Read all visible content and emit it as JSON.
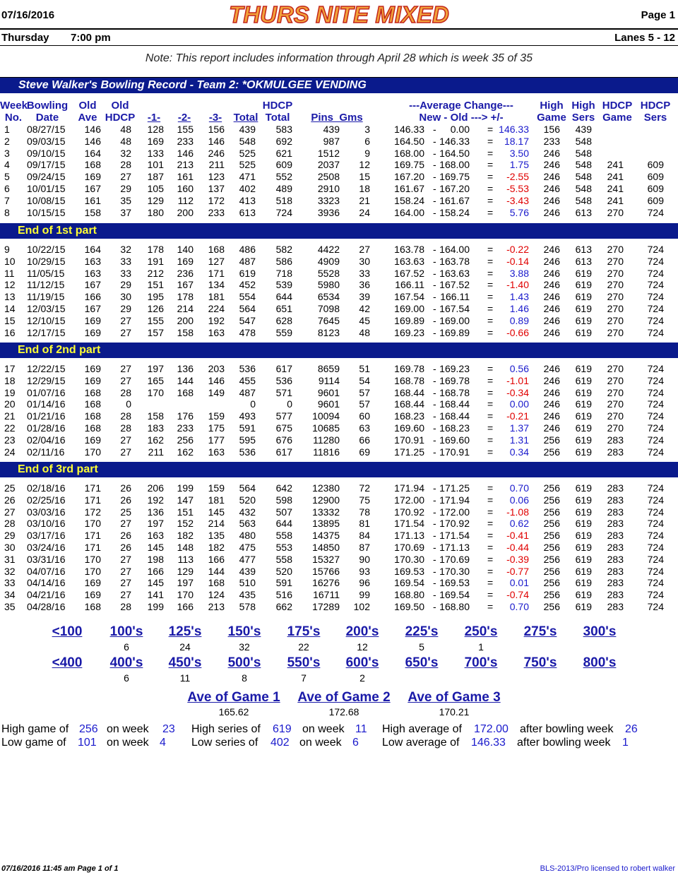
{
  "header": {
    "date": "07/16/2016",
    "title": "THURS NITE MIXED",
    "page": "Page 1",
    "day": "Thursday",
    "time": "7:00 pm",
    "lanes": "Lanes 5 - 12",
    "note": "Note: This report includes information through April 28   which is week 35 of 35"
  },
  "record_title": "Steve Walker's Bowling Record  - Team 2: *OKMULGEE VENDING",
  "columns": {
    "week": [
      "Week",
      "No."
    ],
    "date": [
      "Bowling",
      "Date"
    ],
    "old_ave": [
      "Old",
      "Ave"
    ],
    "old_hdcp": [
      "Old",
      "HDCP"
    ],
    "g1": "-1-",
    "g2": "-2-",
    "g3": "-3-",
    "total": "Total",
    "hdcp_total": [
      "HDCP",
      "Total"
    ],
    "pins_gms": "Pins  Gms",
    "avg_change": [
      "---Average Change---",
      "New - Old ---> +/-"
    ],
    "high_game": [
      "High",
      "Game"
    ],
    "high_sers": [
      "High",
      "Sers"
    ],
    "hdcp_game": [
      "HDCP",
      "Game"
    ],
    "hdcp_sers": [
      "HDCP",
      "Sers"
    ]
  },
  "parts": [
    {
      "label": "",
      "rows": [
        [
          "1",
          "08/27/15",
          "146",
          "48",
          "128",
          "155",
          "156",
          "439",
          "583",
          "439",
          "3",
          "146.33",
          "0.00",
          "146.33",
          "156",
          "439",
          "",
          ""
        ],
        [
          "2",
          "09/03/15",
          "146",
          "48",
          "169",
          "233",
          "146",
          "548",
          "692",
          "987",
          "6",
          "164.50",
          "146.33",
          "18.17",
          "233",
          "548",
          "",
          ""
        ],
        [
          "3",
          "09/10/15",
          "164",
          "32",
          "133",
          "146",
          "246",
          "525",
          "621",
          "1512",
          "9",
          "168.00",
          "164.50",
          "3.50",
          "246",
          "548",
          "",
          ""
        ],
        [
          "4",
          "09/17/15",
          "168",
          "28",
          "101",
          "213",
          "211",
          "525",
          "609",
          "2037",
          "12",
          "169.75",
          "168.00",
          "1.75",
          "246",
          "548",
          "241",
          "609"
        ],
        [
          "5",
          "09/24/15",
          "169",
          "27",
          "187",
          "161",
          "123",
          "471",
          "552",
          "2508",
          "15",
          "167.20",
          "169.75",
          "-2.55",
          "246",
          "548",
          "241",
          "609"
        ],
        [
          "6",
          "10/01/15",
          "167",
          "29",
          "105",
          "160",
          "137",
          "402",
          "489",
          "2910",
          "18",
          "161.67",
          "167.20",
          "-5.53",
          "246",
          "548",
          "241",
          "609"
        ],
        [
          "7",
          "10/08/15",
          "161",
          "35",
          "129",
          "112",
          "172",
          "413",
          "518",
          "3323",
          "21",
          "158.24",
          "161.67",
          "-3.43",
          "246",
          "548",
          "241",
          "609"
        ],
        [
          "8",
          "10/15/15",
          "158",
          "37",
          "180",
          "200",
          "233",
          "613",
          "724",
          "3936",
          "24",
          "164.00",
          "158.24",
          "5.76",
          "246",
          "613",
          "270",
          "724"
        ]
      ]
    },
    {
      "label": "End of 1st part",
      "rows": [
        [
          "9",
          "10/22/15",
          "164",
          "32",
          "178",
          "140",
          "168",
          "486",
          "582",
          "4422",
          "27",
          "163.78",
          "164.00",
          "-0.22",
          "246",
          "613",
          "270",
          "724"
        ],
        [
          "10",
          "10/29/15",
          "163",
          "33",
          "191",
          "169",
          "127",
          "487",
          "586",
          "4909",
          "30",
          "163.63",
          "163.78",
          "-0.14",
          "246",
          "613",
          "270",
          "724"
        ],
        [
          "11",
          "11/05/15",
          "163",
          "33",
          "212",
          "236",
          "171",
          "619",
          "718",
          "5528",
          "33",
          "167.52",
          "163.63",
          "3.88",
          "246",
          "619",
          "270",
          "724"
        ],
        [
          "12",
          "11/12/15",
          "167",
          "29",
          "151",
          "167",
          "134",
          "452",
          "539",
          "5980",
          "36",
          "166.11",
          "167.52",
          "-1.40",
          "246",
          "619",
          "270",
          "724"
        ],
        [
          "13",
          "11/19/15",
          "166",
          "30",
          "195",
          "178",
          "181",
          "554",
          "644",
          "6534",
          "39",
          "167.54",
          "166.11",
          "1.43",
          "246",
          "619",
          "270",
          "724"
        ],
        [
          "14",
          "12/03/15",
          "167",
          "29",
          "126",
          "214",
          "224",
          "564",
          "651",
          "7098",
          "42",
          "169.00",
          "167.54",
          "1.46",
          "246",
          "619",
          "270",
          "724"
        ],
        [
          "15",
          "12/10/15",
          "169",
          "27",
          "155",
          "200",
          "192",
          "547",
          "628",
          "7645",
          "45",
          "169.89",
          "169.00",
          "0.89",
          "246",
          "619",
          "270",
          "724"
        ],
        [
          "16",
          "12/17/15",
          "169",
          "27",
          "157",
          "158",
          "163",
          "478",
          "559",
          "8123",
          "48",
          "169.23",
          "169.89",
          "-0.66",
          "246",
          "619",
          "270",
          "724"
        ]
      ]
    },
    {
      "label": "End of 2nd part",
      "rows": [
        [
          "17",
          "12/22/15",
          "169",
          "27",
          "197",
          "136",
          "203",
          "536",
          "617",
          "8659",
          "51",
          "169.78",
          "169.23",
          "0.56",
          "246",
          "619",
          "270",
          "724"
        ],
        [
          "18",
          "12/29/15",
          "169",
          "27",
          "165",
          "144",
          "146",
          "455",
          "536",
          "9114",
          "54",
          "168.78",
          "169.78",
          "-1.01",
          "246",
          "619",
          "270",
          "724"
        ],
        [
          "19",
          "01/07/16",
          "168",
          "28",
          "170",
          "168",
          "149",
          "487",
          "571",
          "9601",
          "57",
          "168.44",
          "168.78",
          "-0.34",
          "246",
          "619",
          "270",
          "724"
        ],
        [
          "20",
          "01/14/16",
          "168",
          "0",
          "",
          "",
          "",
          "0",
          "0",
          "9601",
          "57",
          "168.44",
          "168.44",
          "0.00",
          "246",
          "619",
          "270",
          "724"
        ],
        [
          "21",
          "01/21/16",
          "168",
          "28",
          "158",
          "176",
          "159",
          "493",
          "577",
          "10094",
          "60",
          "168.23",
          "168.44",
          "-0.21",
          "246",
          "619",
          "270",
          "724"
        ],
        [
          "22",
          "01/28/16",
          "168",
          "28",
          "183",
          "233",
          "175",
          "591",
          "675",
          "10685",
          "63",
          "169.60",
          "168.23",
          "1.37",
          "246",
          "619",
          "270",
          "724"
        ],
        [
          "23",
          "02/04/16",
          "169",
          "27",
          "162",
          "256",
          "177",
          "595",
          "676",
          "11280",
          "66",
          "170.91",
          "169.60",
          "1.31",
          "256",
          "619",
          "283",
          "724"
        ],
        [
          "24",
          "02/11/16",
          "170",
          "27",
          "211",
          "162",
          "163",
          "536",
          "617",
          "11816",
          "69",
          "171.25",
          "170.91",
          "0.34",
          "256",
          "619",
          "283",
          "724"
        ]
      ]
    },
    {
      "label": "End of 3rd part",
      "rows": [
        [
          "25",
          "02/18/16",
          "171",
          "26",
          "206",
          "199",
          "159",
          "564",
          "642",
          "12380",
          "72",
          "171.94",
          "171.25",
          "0.70",
          "256",
          "619",
          "283",
          "724"
        ],
        [
          "26",
          "02/25/16",
          "171",
          "26",
          "192",
          "147",
          "181",
          "520",
          "598",
          "12900",
          "75",
          "172.00",
          "171.94",
          "0.06",
          "256",
          "619",
          "283",
          "724"
        ],
        [
          "27",
          "03/03/16",
          "172",
          "25",
          "136",
          "151",
          "145",
          "432",
          "507",
          "13332",
          "78",
          "170.92",
          "172.00",
          "-1.08",
          "256",
          "619",
          "283",
          "724"
        ],
        [
          "28",
          "03/10/16",
          "170",
          "27",
          "197",
          "152",
          "214",
          "563",
          "644",
          "13895",
          "81",
          "171.54",
          "170.92",
          "0.62",
          "256",
          "619",
          "283",
          "724"
        ],
        [
          "29",
          "03/17/16",
          "171",
          "26",
          "163",
          "182",
          "135",
          "480",
          "558",
          "14375",
          "84",
          "171.13",
          "171.54",
          "-0.41",
          "256",
          "619",
          "283",
          "724"
        ],
        [
          "30",
          "03/24/16",
          "171",
          "26",
          "145",
          "148",
          "182",
          "475",
          "553",
          "14850",
          "87",
          "170.69",
          "171.13",
          "-0.44",
          "256",
          "619",
          "283",
          "724"
        ],
        [
          "31",
          "03/31/16",
          "170",
          "27",
          "198",
          "113",
          "166",
          "477",
          "558",
          "15327",
          "90",
          "170.30",
          "170.69",
          "-0.39",
          "256",
          "619",
          "283",
          "724"
        ],
        [
          "32",
          "04/07/16",
          "170",
          "27",
          "166",
          "129",
          "144",
          "439",
          "520",
          "15766",
          "93",
          "169.53",
          "170.30",
          "-0.77",
          "256",
          "619",
          "283",
          "724"
        ],
        [
          "33",
          "04/14/16",
          "169",
          "27",
          "145",
          "197",
          "168",
          "510",
          "591",
          "16276",
          "96",
          "169.54",
          "169.53",
          "0.01",
          "256",
          "619",
          "283",
          "724"
        ],
        [
          "34",
          "04/21/16",
          "169",
          "27",
          "141",
          "170",
          "124",
          "435",
          "516",
          "16711",
          "99",
          "168.80",
          "169.54",
          "-0.74",
          "256",
          "619",
          "283",
          "724"
        ],
        [
          "35",
          "04/28/16",
          "168",
          "28",
          "199",
          "166",
          "213",
          "578",
          "662",
          "17289",
          "102",
          "169.50",
          "168.80",
          "0.70",
          "256",
          "619",
          "283",
          "724"
        ]
      ]
    }
  ],
  "game_histogram": [
    {
      "label": "<100",
      "count": ""
    },
    {
      "label": "100's",
      "count": "6"
    },
    {
      "label": "125's",
      "count": "24"
    },
    {
      "label": "150's",
      "count": "32"
    },
    {
      "label": "175's",
      "count": "22"
    },
    {
      "label": "200's",
      "count": "12"
    },
    {
      "label": "225's",
      "count": "5"
    },
    {
      "label": "250's",
      "count": "1"
    },
    {
      "label": "275's",
      "count": ""
    },
    {
      "label": "300's",
      "count": ""
    }
  ],
  "series_histogram": [
    {
      "label": "<400",
      "count": ""
    },
    {
      "label": "400's",
      "count": "6"
    },
    {
      "label": "450's",
      "count": "11"
    },
    {
      "label": "500's",
      "count": "8"
    },
    {
      "label": "550's",
      "count": "7"
    },
    {
      "label": "600's",
      "count": "2"
    },
    {
      "label": "650's",
      "count": ""
    },
    {
      "label": "700's",
      "count": ""
    },
    {
      "label": "750's",
      "count": ""
    },
    {
      "label": "800's",
      "count": ""
    }
  ],
  "game_averages": [
    {
      "label": "Ave of Game 1",
      "value": "165.62"
    },
    {
      "label": "Ave of Game 2",
      "value": "172.68"
    },
    {
      "label": "Ave of Game 3",
      "value": "170.21"
    }
  ],
  "summary": {
    "high_game": {
      "label": "High game of",
      "value": "256",
      "week_label": "on week",
      "week": "23"
    },
    "low_game": {
      "label": "Low game of",
      "value": "101",
      "week_label": "on week",
      "week": "4"
    },
    "high_series": {
      "label": "High series of",
      "value": "619",
      "week_label": "on week",
      "week": "11"
    },
    "low_series": {
      "label": "Low series of",
      "value": "402",
      "week_label": "on week",
      "week": "6"
    },
    "high_average": {
      "label": "High average of",
      "value": "172.00",
      "week_label": "after bowling week",
      "week": "26"
    },
    "low_average": {
      "label": "Low average of",
      "value": "146.33",
      "week_label": "after bowling week",
      "week": "1"
    }
  },
  "footer": {
    "left": "07/16/2016  11:45 am  Page 1 of 1",
    "right": "BLS-2013/Pro licensed to robert walker"
  },
  "colors": {
    "band": "#0a1a8c",
    "part_label": "#ffff33",
    "header_blue": "#1a1aa8",
    "positive": "#1a1acc",
    "negative": "#e00000",
    "title_fill": "#f2a23a",
    "title_stroke": "#c2261c"
  }
}
